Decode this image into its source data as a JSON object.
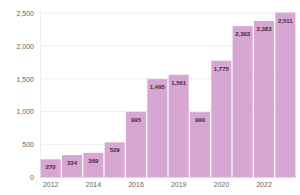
{
  "chart_data": {
    "type": "bar",
    "categories": [
      "2012",
      null,
      "2014",
      null,
      "2016",
      null,
      "2019",
      null,
      "2020",
      null,
      "2022",
      null
    ],
    "values": [
      270,
      334,
      369,
      529,
      995,
      1495,
      1561,
      990,
      1775,
      2303,
      2383,
      2511
    ],
    "value_labels": [
      "270",
      "334",
      "369",
      "529",
      "995",
      "1,495",
      "1,561",
      "990",
      "1,775",
      "2,303",
      "2,383",
      "2,511"
    ],
    "color": "#d7a6d3",
    "ylim": [
      0,
      2550
    ],
    "yticks": [
      0,
      500,
      {
        "value": 1000,
        "label": "1,000"
      },
      {
        "value": 1500,
        "label": "1,500"
      },
      {
        "value": 2000,
        "label": "2,000"
      },
      {
        "value": 2500,
        "label": "2,500"
      }
    ],
    "grid": true,
    "data_labels": true
  }
}
